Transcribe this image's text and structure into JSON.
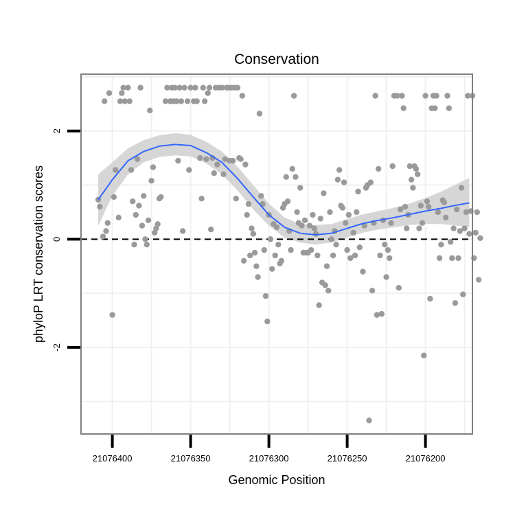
{
  "chart_data": {
    "type": "scatter",
    "title": "Conservation",
    "xlabel": "Genomic Position",
    "ylabel": "phyloP LRT conservation scores",
    "x_reversed": true,
    "xlim": [
      21076170,
      21076420
    ],
    "ylim": [
      -3.6,
      3.05
    ],
    "x_ticks": [
      {
        "value": 21076400,
        "label": "21076400"
      },
      {
        "value": 21076350,
        "label": "21076350"
      },
      {
        "value": 21076300,
        "label": "21076300"
      },
      {
        "value": 21076250,
        "label": "21076250"
      },
      {
        "value": 21076200,
        "label": "21076200"
      }
    ],
    "y_ticks": [
      {
        "value": 2,
        "label": "2"
      },
      {
        "value": 0,
        "label": "0"
      },
      {
        "value": -2,
        "label": "-2"
      }
    ],
    "x_minor_gridlines": [
      21076425,
      21076375,
      21076325,
      21076275,
      21076225,
      21076175
    ],
    "y_minor_gridlines": [
      3,
      1,
      -1,
      -3
    ],
    "reference_line": {
      "y": 0,
      "style": "dashed"
    },
    "colors": {
      "points": "#9a9a9a",
      "smooth_line": "#3366ff",
      "confidence_band": "#d6d6d6",
      "panel_border": "#7f7f7f",
      "gridlines": "#f0f0f0",
      "reference_line": "#000000"
    },
    "smooth": [
      {
        "x": 21076409,
        "y": 0.73,
        "lo": 0.25,
        "hi": 1.2
      },
      {
        "x": 21076400,
        "y": 1.1,
        "lo": 0.8,
        "hi": 1.42
      },
      {
        "x": 21076390,
        "y": 1.45,
        "lo": 1.2,
        "hi": 1.68
      },
      {
        "x": 21076380,
        "y": 1.62,
        "lo": 1.42,
        "hi": 1.83
      },
      {
        "x": 21076370,
        "y": 1.72,
        "lo": 1.52,
        "hi": 1.92
      },
      {
        "x": 21076360,
        "y": 1.75,
        "lo": 1.55,
        "hi": 1.96
      },
      {
        "x": 21076350,
        "y": 1.73,
        "lo": 1.53,
        "hi": 1.93
      },
      {
        "x": 21076340,
        "y": 1.6,
        "lo": 1.4,
        "hi": 1.8
      },
      {
        "x": 21076330,
        "y": 1.42,
        "lo": 1.2,
        "hi": 1.62
      },
      {
        "x": 21076320,
        "y": 1.12,
        "lo": 0.9,
        "hi": 1.34
      },
      {
        "x": 21076310,
        "y": 0.78,
        "lo": 0.55,
        "hi": 1.0
      },
      {
        "x": 21076300,
        "y": 0.45,
        "lo": 0.25,
        "hi": 0.66
      },
      {
        "x": 21076290,
        "y": 0.22,
        "lo": 0.03,
        "hi": 0.4
      },
      {
        "x": 21076280,
        "y": 0.11,
        "lo": -0.06,
        "hi": 0.28
      },
      {
        "x": 21076270,
        "y": 0.08,
        "lo": -0.1,
        "hi": 0.26
      },
      {
        "x": 21076260,
        "y": 0.11,
        "lo": -0.06,
        "hi": 0.28
      },
      {
        "x": 21076250,
        "y": 0.2,
        "lo": 0.03,
        "hi": 0.37
      },
      {
        "x": 21076240,
        "y": 0.29,
        "lo": 0.12,
        "hi": 0.46
      },
      {
        "x": 21076230,
        "y": 0.35,
        "lo": 0.18,
        "hi": 0.52
      },
      {
        "x": 21076220,
        "y": 0.4,
        "lo": 0.22,
        "hi": 0.58
      },
      {
        "x": 21076210,
        "y": 0.46,
        "lo": 0.26,
        "hi": 0.66
      },
      {
        "x": 21076200,
        "y": 0.52,
        "lo": 0.28,
        "hi": 0.76
      },
      {
        "x": 21076190,
        "y": 0.57,
        "lo": 0.28,
        "hi": 0.88
      },
      {
        "x": 21076180,
        "y": 0.63,
        "lo": 0.25,
        "hi": 1.02
      },
      {
        "x": 21076172,
        "y": 0.67,
        "lo": 0.22,
        "hi": 1.13
      }
    ],
    "points": [
      {
        "x": 21076409,
        "y": 0.73
      },
      {
        "x": 21076408,
        "y": 0.6
      },
      {
        "x": 21076406,
        "y": 0.05
      },
      {
        "x": 21076404,
        "y": 0.15
      },
      {
        "x": 21076403,
        "y": 0.3
      },
      {
        "x": 21076405,
        "y": 2.55
      },
      {
        "x": 21076402,
        "y": 2.7
      },
      {
        "x": 21076400,
        "y": -1.4
      },
      {
        "x": 21076399,
        "y": 0.78
      },
      {
        "x": 21076398,
        "y": 1.28
      },
      {
        "x": 21076396,
        "y": 0.4
      },
      {
        "x": 21076395,
        "y": 2.55
      },
      {
        "x": 21076394,
        "y": 2.7
      },
      {
        "x": 21076393,
        "y": 2.8
      },
      {
        "x": 21076392,
        "y": 2.55
      },
      {
        "x": 21076390,
        "y": 2.8
      },
      {
        "x": 21076389,
        "y": 2.55
      },
      {
        "x": 21076388,
        "y": 1.28
      },
      {
        "x": 21076387,
        "y": 0.7
      },
      {
        "x": 21076386,
        "y": -0.1
      },
      {
        "x": 21076385,
        "y": 0.45
      },
      {
        "x": 21076384,
        "y": 1.48
      },
      {
        "x": 21076383,
        "y": 0.62
      },
      {
        "x": 21076382,
        "y": 2.8
      },
      {
        "x": 21076381,
        "y": 0.25
      },
      {
        "x": 21076380,
        "y": 0.8
      },
      {
        "x": 21076379,
        "y": 0.0
      },
      {
        "x": 21076378,
        "y": -0.1
      },
      {
        "x": 21076377,
        "y": 0.35
      },
      {
        "x": 21076376,
        "y": 2.38
      },
      {
        "x": 21076375,
        "y": 1.08
      },
      {
        "x": 21076374,
        "y": 1.33
      },
      {
        "x": 21076373,
        "y": 0.12
      },
      {
        "x": 21076372,
        "y": 0.2
      },
      {
        "x": 21076371,
        "y": 0.28
      },
      {
        "x": 21076370,
        "y": 0.75
      },
      {
        "x": 21076369,
        "y": 0.78
      },
      {
        "x": 21076366,
        "y": 2.55
      },
      {
        "x": 21076365,
        "y": 2.8
      },
      {
        "x": 21076363,
        "y": 2.55
      },
      {
        "x": 21076362,
        "y": 2.8
      },
      {
        "x": 21076361,
        "y": 2.55
      },
      {
        "x": 21076360,
        "y": 2.8
      },
      {
        "x": 21076359,
        "y": 2.55
      },
      {
        "x": 21076358,
        "y": 1.45
      },
      {
        "x": 21076357,
        "y": 2.8
      },
      {
        "x": 21076356,
        "y": 2.55
      },
      {
        "x": 21076355,
        "y": 0.15
      },
      {
        "x": 21076354,
        "y": 2.8
      },
      {
        "x": 21076352,
        "y": 2.55
      },
      {
        "x": 21076351,
        "y": 1.28
      },
      {
        "x": 21076350,
        "y": 2.8
      },
      {
        "x": 21076348,
        "y": 2.55
      },
      {
        "x": 21076347,
        "y": 2.8
      },
      {
        "x": 21076346,
        "y": 2.55
      },
      {
        "x": 21076344,
        "y": 1.5
      },
      {
        "x": 21076343,
        "y": 0.75
      },
      {
        "x": 21076342,
        "y": 2.8
      },
      {
        "x": 21076341,
        "y": 2.55
      },
      {
        "x": 21076340,
        "y": 1.48
      },
      {
        "x": 21076339,
        "y": 2.7
      },
      {
        "x": 21076338,
        "y": 2.8
      },
      {
        "x": 21076337,
        "y": 0.18
      },
      {
        "x": 21076336,
        "y": 1.5
      },
      {
        "x": 21076335,
        "y": 1.22
      },
      {
        "x": 21076334,
        "y": 2.8
      },
      {
        "x": 21076333,
        "y": 1.38
      },
      {
        "x": 21076332,
        "y": 2.8
      },
      {
        "x": 21076330,
        "y": 2.8
      },
      {
        "x": 21076329,
        "y": 1.2
      },
      {
        "x": 21076328,
        "y": 1.48
      },
      {
        "x": 21076327,
        "y": 2.8
      },
      {
        "x": 21076326,
        "y": 2.8
      },
      {
        "x": 21076325,
        "y": 1.45
      },
      {
        "x": 21076324,
        "y": 2.8
      },
      {
        "x": 21076323,
        "y": 1.45
      },
      {
        "x": 21076322,
        "y": 2.8
      },
      {
        "x": 21076321,
        "y": 0.75
      },
      {
        "x": 21076320,
        "y": 2.8
      },
      {
        "x": 21076319,
        "y": 1.5
      },
      {
        "x": 21076318,
        "y": 1.48
      },
      {
        "x": 21076317,
        "y": 2.65
      },
      {
        "x": 21076316,
        "y": -0.4
      },
      {
        "x": 21076315,
        "y": 1.38
      },
      {
        "x": 21076314,
        "y": 0.45
      },
      {
        "x": 21076313,
        "y": 0.65
      },
      {
        "x": 21076312,
        "y": -0.3
      },
      {
        "x": 21076311,
        "y": 0.2
      },
      {
        "x": 21076310,
        "y": 0.1
      },
      {
        "x": 21076309,
        "y": -0.25
      },
      {
        "x": 21076308,
        "y": -0.5
      },
      {
        "x": 21076307,
        "y": -0.7
      },
      {
        "x": 21076306,
        "y": 2.32
      },
      {
        "x": 21076305,
        "y": 0.8
      },
      {
        "x": 21076304,
        "y": 0.65
      },
      {
        "x": 21076303,
        "y": -0.2
      },
      {
        "x": 21076302,
        "y": -1.05
      },
      {
        "x": 21076301,
        "y": -1.52
      },
      {
        "x": 21076300,
        "y": 0.45
      },
      {
        "x": 21076299,
        "y": 0.0
      },
      {
        "x": 21076298,
        "y": -0.55
      },
      {
        "x": 21076297,
        "y": 0.28
      },
      {
        "x": 21076296,
        "y": -0.3
      },
      {
        "x": 21076295,
        "y": 0.22
      },
      {
        "x": 21076294,
        "y": -0.1
      },
      {
        "x": 21076293,
        "y": -0.45
      },
      {
        "x": 21076292,
        "y": -0.4
      },
      {
        "x": 21076291,
        "y": 0.58
      },
      {
        "x": 21076290,
        "y": 0.65
      },
      {
        "x": 21076289,
        "y": 1.15
      },
      {
        "x": 21076288,
        "y": 0.7
      },
      {
        "x": 21076287,
        "y": 0.15
      },
      {
        "x": 21076286,
        "y": -0.2
      },
      {
        "x": 21076285,
        "y": 1.3
      },
      {
        "x": 21076284,
        "y": 2.65
      },
      {
        "x": 21076283,
        "y": 1.15
      },
      {
        "x": 21076282,
        "y": 0.5
      },
      {
        "x": 21076281,
        "y": 0.3
      },
      {
        "x": 21076280,
        "y": 0.95
      },
      {
        "x": 21076279,
        "y": 0.25
      },
      {
        "x": 21076278,
        "y": -0.25
      },
      {
        "x": 21076277,
        "y": 0.35
      },
      {
        "x": 21076276,
        "y": -0.25
      },
      {
        "x": 21076275,
        "y": -0.25
      },
      {
        "x": 21076274,
        "y": 0.25
      },
      {
        "x": 21076273,
        "y": -0.2
      },
      {
        "x": 21076272,
        "y": 0.45
      },
      {
        "x": 21076271,
        "y": 0.2
      },
      {
        "x": 21076270,
        "y": 0.1
      },
      {
        "x": 21076269,
        "y": -0.3
      },
      {
        "x": 21076268,
        "y": -1.22
      },
      {
        "x": 21076267,
        "y": 0.38
      },
      {
        "x": 21076266,
        "y": -0.8
      },
      {
        "x": 21076265,
        "y": 0.85
      },
      {
        "x": 21076264,
        "y": -0.85
      },
      {
        "x": 21076263,
        "y": -0.5
      },
      {
        "x": 21076262,
        "y": -0.95
      },
      {
        "x": 21076261,
        "y": 0.5
      },
      {
        "x": 21076260,
        "y": 0.0
      },
      {
        "x": 21076259,
        "y": -0.3
      },
      {
        "x": 21076258,
        "y": 0.15
      },
      {
        "x": 21076257,
        "y": -0.1
      },
      {
        "x": 21076256,
        "y": 1.1
      },
      {
        "x": 21076255,
        "y": 1.28
      },
      {
        "x": 21076254,
        "y": 0.62
      },
      {
        "x": 21076253,
        "y": 0.58
      },
      {
        "x": 21076252,
        "y": 1.05
      },
      {
        "x": 21076251,
        "y": 0.3
      },
      {
        "x": 21076250,
        "y": -0.2
      },
      {
        "x": 21076249,
        "y": 0.45
      },
      {
        "x": 21076248,
        "y": -0.35
      },
      {
        "x": 21076246,
        "y": 0.12
      },
      {
        "x": 21076245,
        "y": -0.3
      },
      {
        "x": 21076244,
        "y": 0.5
      },
      {
        "x": 21076243,
        "y": 0.88
      },
      {
        "x": 21076242,
        "y": -0.15
      },
      {
        "x": 21076240,
        "y": -0.6
      },
      {
        "x": 21076239,
        "y": 0.25
      },
      {
        "x": 21076238,
        "y": 0.95
      },
      {
        "x": 21076237,
        "y": 1.0
      },
      {
        "x": 21076236,
        "y": -3.35
      },
      {
        "x": 21076235,
        "y": 1.05
      },
      {
        "x": 21076234,
        "y": -0.95
      },
      {
        "x": 21076233,
        "y": 0.3
      },
      {
        "x": 21076232,
        "y": 2.65
      },
      {
        "x": 21076231,
        "y": -1.4
      },
      {
        "x": 21076230,
        "y": 1.3
      },
      {
        "x": 21076229,
        "y": -0.3
      },
      {
        "x": 21076228,
        "y": -1.38
      },
      {
        "x": 21076227,
        "y": 0.35
      },
      {
        "x": 21076226,
        "y": -0.1
      },
      {
        "x": 21076225,
        "y": -0.7
      },
      {
        "x": 21076224,
        "y": -0.2
      },
      {
        "x": 21076223,
        "y": -0.35
      },
      {
        "x": 21076222,
        "y": 0.3
      },
      {
        "x": 21076221,
        "y": 1.35
      },
      {
        "x": 21076220,
        "y": 2.65
      },
      {
        "x": 21076218,
        "y": 2.65
      },
      {
        "x": 21076217,
        "y": -0.9
      },
      {
        "x": 21076216,
        "y": 0.55
      },
      {
        "x": 21076215,
        "y": 2.65
      },
      {
        "x": 21076214,
        "y": 2.42
      },
      {
        "x": 21076213,
        "y": 0.6
      },
      {
        "x": 21076212,
        "y": 0.2
      },
      {
        "x": 21076211,
        "y": 0.45
      },
      {
        "x": 21076210,
        "y": 1.35
      },
      {
        "x": 21076209,
        "y": 1.1
      },
      {
        "x": 21076208,
        "y": 0.95
      },
      {
        "x": 21076207,
        "y": 1.35
      },
      {
        "x": 21076206,
        "y": 1.3
      },
      {
        "x": 21076205,
        "y": 1.2
      },
      {
        "x": 21076204,
        "y": 0.2
      },
      {
        "x": 21076203,
        "y": 0.62
      },
      {
        "x": 21076202,
        "y": 0.3
      },
      {
        "x": 21076201,
        "y": -2.15
      },
      {
        "x": 21076200,
        "y": 2.65
      },
      {
        "x": 21076199,
        "y": 0.7
      },
      {
        "x": 21076198,
        "y": 0.6
      },
      {
        "x": 21076197,
        "y": -1.1
      },
      {
        "x": 21076196,
        "y": 2.42
      },
      {
        "x": 21076195,
        "y": 2.65
      },
      {
        "x": 21076194,
        "y": 2.42
      },
      {
        "x": 21076193,
        "y": 2.65
      },
      {
        "x": 21076192,
        "y": 0.5
      },
      {
        "x": 21076191,
        "y": -0.35
      },
      {
        "x": 21076190,
        "y": -0.1
      },
      {
        "x": 21076189,
        "y": 0.72
      },
      {
        "x": 21076188,
        "y": 0.68
      },
      {
        "x": 21076187,
        "y": 0.4
      },
      {
        "x": 21076186,
        "y": 2.65
      },
      {
        "x": 21076185,
        "y": 2.42
      },
      {
        "x": 21076184,
        "y": -0.05
      },
      {
        "x": 21076183,
        "y": -0.35
      },
      {
        "x": 21076182,
        "y": 0.2
      },
      {
        "x": 21076181,
        "y": -1.18
      },
      {
        "x": 21076180,
        "y": 0.55
      },
      {
        "x": 21076179,
        "y": -0.35
      },
      {
        "x": 21076178,
        "y": 0.15
      },
      {
        "x": 21076177,
        "y": 0.95
      },
      {
        "x": 21076176,
        "y": -1.02
      },
      {
        "x": 21076175,
        "y": 0.2
      },
      {
        "x": 21076174,
        "y": 0.5
      },
      {
        "x": 21076173,
        "y": 2.65
      },
      {
        "x": 21076172,
        "y": 0.1
      },
      {
        "x": 21076171,
        "y": 0.52
      },
      {
        "x": 21076170,
        "y": 2.65
      },
      {
        "x": 21076169,
        "y": -0.35
      },
      {
        "x": 21076168,
        "y": 0.12
      },
      {
        "x": 21076167,
        "y": 0.5
      },
      {
        "x": 21076166,
        "y": -0.75
      },
      {
        "x": 21076165,
        "y": 0.02
      }
    ]
  }
}
